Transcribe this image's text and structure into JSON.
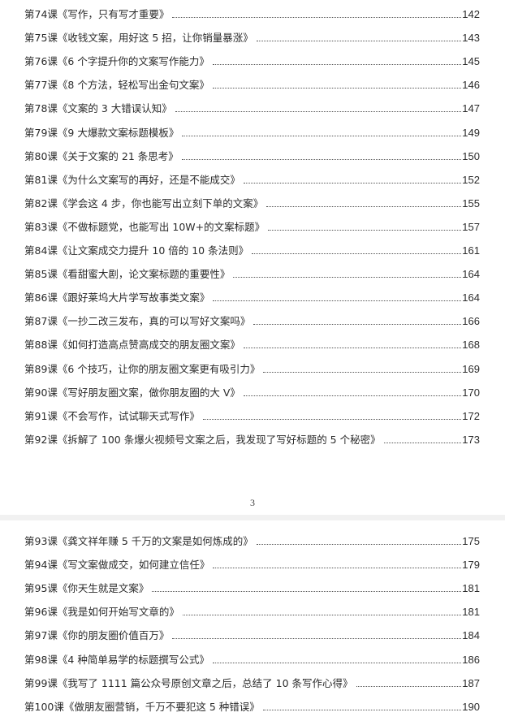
{
  "page1": {
    "entries": [
      {
        "title": "第74课《写作，只有写才重要》",
        "page": "142"
      },
      {
        "title": "第75课《收钱文案，用好这 5 招，让你销量暴涨》",
        "page": "143"
      },
      {
        "title": "第76课《6 个字提升你的文案写作能力》",
        "page": "145"
      },
      {
        "title": "第77课《8 个方法，轻松写出金句文案》",
        "page": "146"
      },
      {
        "title": "第78课《文案的 3 大错误认知》",
        "page": "147"
      },
      {
        "title": "第79课《9 大爆款文案标题模板》",
        "page": "149"
      },
      {
        "title": "第80课《关于文案的 21 条思考》",
        "page": "150"
      },
      {
        "title": "第81课《为什么文案写的再好，还是不能成交》",
        "page": "152"
      },
      {
        "title": "第82课《学会这 4 步，你也能写出立刻下单的文案》",
        "page": "155"
      },
      {
        "title": "第83课《不做标题党，也能写出 10W+的文案标题》",
        "page": "157"
      },
      {
        "title": "第84课《让文案成交力提升 10 倍的 10 条法则》",
        "page": "161"
      },
      {
        "title": "第85课《看甜蜜大剧，论文案标题的重要性》",
        "page": "164"
      },
      {
        "title": "第86课《跟好莱坞大片学写故事类文案》",
        "page": "164"
      },
      {
        "title": "第87课《一抄二改三发布，真的可以写好文案吗》",
        "page": "166"
      },
      {
        "title": "第88课《如何打造高点赞高成交的朋友圈文案》",
        "page": "168"
      },
      {
        "title": "第89课《6 个技巧，让你的朋友圈文案更有吸引力》",
        "page": "169"
      },
      {
        "title": "第90课《写好朋友圈文案，做你朋友圈的大 V》",
        "page": "170"
      },
      {
        "title": "第91课《不会写作，试试聊天式写作》",
        "page": "172"
      },
      {
        "title": "第92课《拆解了 100 条爆火视频号文案之后，我发现了写好标题的 5 个秘密》",
        "page": "173"
      }
    ],
    "page_number": "3"
  },
  "page2": {
    "entries": [
      {
        "title": "第93课《龚文祥年赚 5 千万的文案是如何炼成的》",
        "page": "175"
      },
      {
        "title": "第94课《写文案做成交，如何建立信任》",
        "page": "179"
      },
      {
        "title": "第95课《你天生就是文案》",
        "page": "181"
      },
      {
        "title": "第96课《我是如何开始写文章的》",
        "page": "181"
      },
      {
        "title": "第97课《你的朋友圈价值百万》",
        "page": "184"
      },
      {
        "title": "第98课《4 种简单易学的标题撰写公式》",
        "page": "186"
      },
      {
        "title": "第99课《我写了 1111 篇公众号原创文章之后，总结了 10 条写作心得》",
        "page": "187"
      },
      {
        "title": "第100课《做朋友圈营销，千万不要犯这 5 种错误》",
        "page": "190"
      }
    ]
  }
}
